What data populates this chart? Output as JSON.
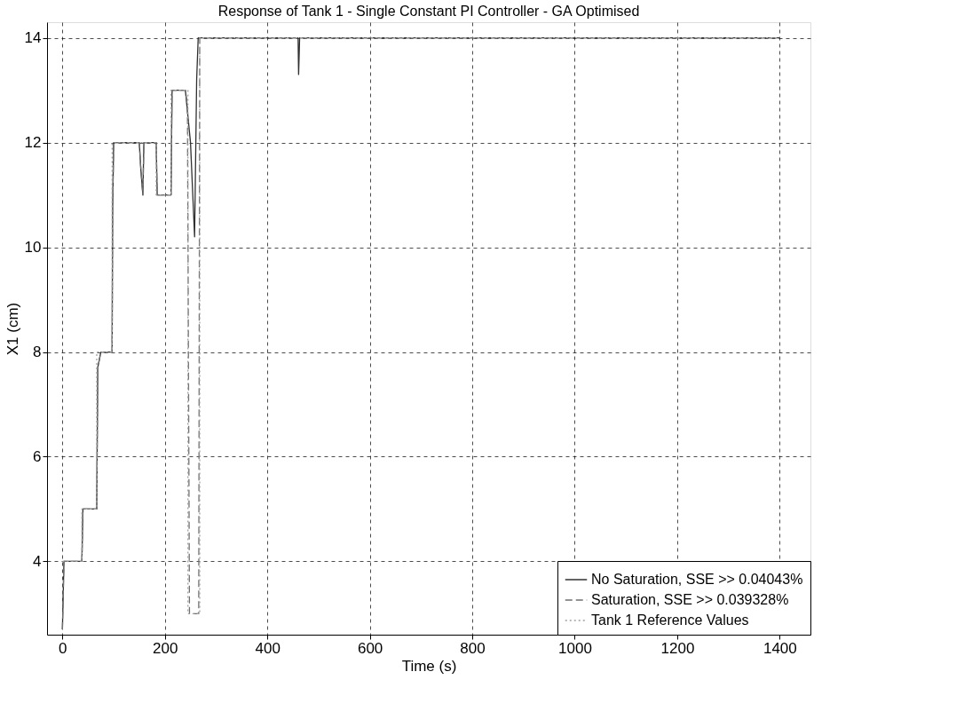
{
  "chart_data": {
    "type": "line",
    "title": "Response of Tank 1 - Single Constant PI Controller - GA Optimised",
    "xlabel": "Time (s)",
    "ylabel": "X1 (cm)",
    "xlim": [
      -30,
      1460
    ],
    "ylim": [
      2.6,
      14.3
    ],
    "xticks": [
      0,
      200,
      400,
      600,
      800,
      1000,
      1200,
      1400
    ],
    "yticks": [
      4,
      6,
      8,
      10,
      12,
      14
    ],
    "grid": true,
    "legend": "bottom right",
    "marker": "none",
    "series": [
      {
        "name": "No Saturation, SSE >> 0.04043%",
        "color": "#303030",
        "line_style": "solid",
        "x": [
          0,
          3,
          38,
          40,
          67,
          69,
          75,
          97,
          98,
          100,
          150,
          153,
          157,
          159,
          183,
          185,
          212,
          214,
          240,
          245,
          250,
          258,
          262,
          265,
          460,
          461,
          463,
          1400
        ],
        "values": [
          2.7,
          4,
          4,
          5,
          5,
          7.7,
          8,
          8,
          10.7,
          12,
          12,
          11.5,
          11,
          12,
          12,
          11,
          11,
          13,
          13,
          12.5,
          12,
          10.2,
          13.2,
          14,
          14,
          13.3,
          14,
          14
        ]
      },
      {
        "name": "Saturation, SSE >> 0.039328%",
        "color": "#707070",
        "line_style": "dashed",
        "x": [
          0,
          3,
          38,
          40,
          67,
          69,
          75,
          97,
          98,
          100,
          150,
          153,
          157,
          159,
          183,
          185,
          212,
          214,
          240,
          244,
          248,
          266,
          268,
          1400
        ],
        "values": [
          2.7,
          4,
          4,
          5,
          5,
          7.7,
          8,
          8,
          10.7,
          12,
          12,
          11.5,
          11,
          12,
          12,
          11,
          11,
          13,
          13,
          12.7,
          3,
          3,
          14,
          14
        ]
      },
      {
        "name": "Tank 1 Reference Values",
        "color": "#a0a0a0",
        "line_style": "dotted",
        "x": [
          0,
          38,
          38,
          67,
          67,
          97,
          97,
          183,
          183,
          212,
          212,
          245,
          245,
          268,
          268,
          1400
        ],
        "values": [
          4,
          4,
          5,
          5,
          8,
          8,
          12,
          12,
          11,
          11,
          13,
          13,
          3,
          3,
          14,
          14
        ]
      }
    ]
  }
}
